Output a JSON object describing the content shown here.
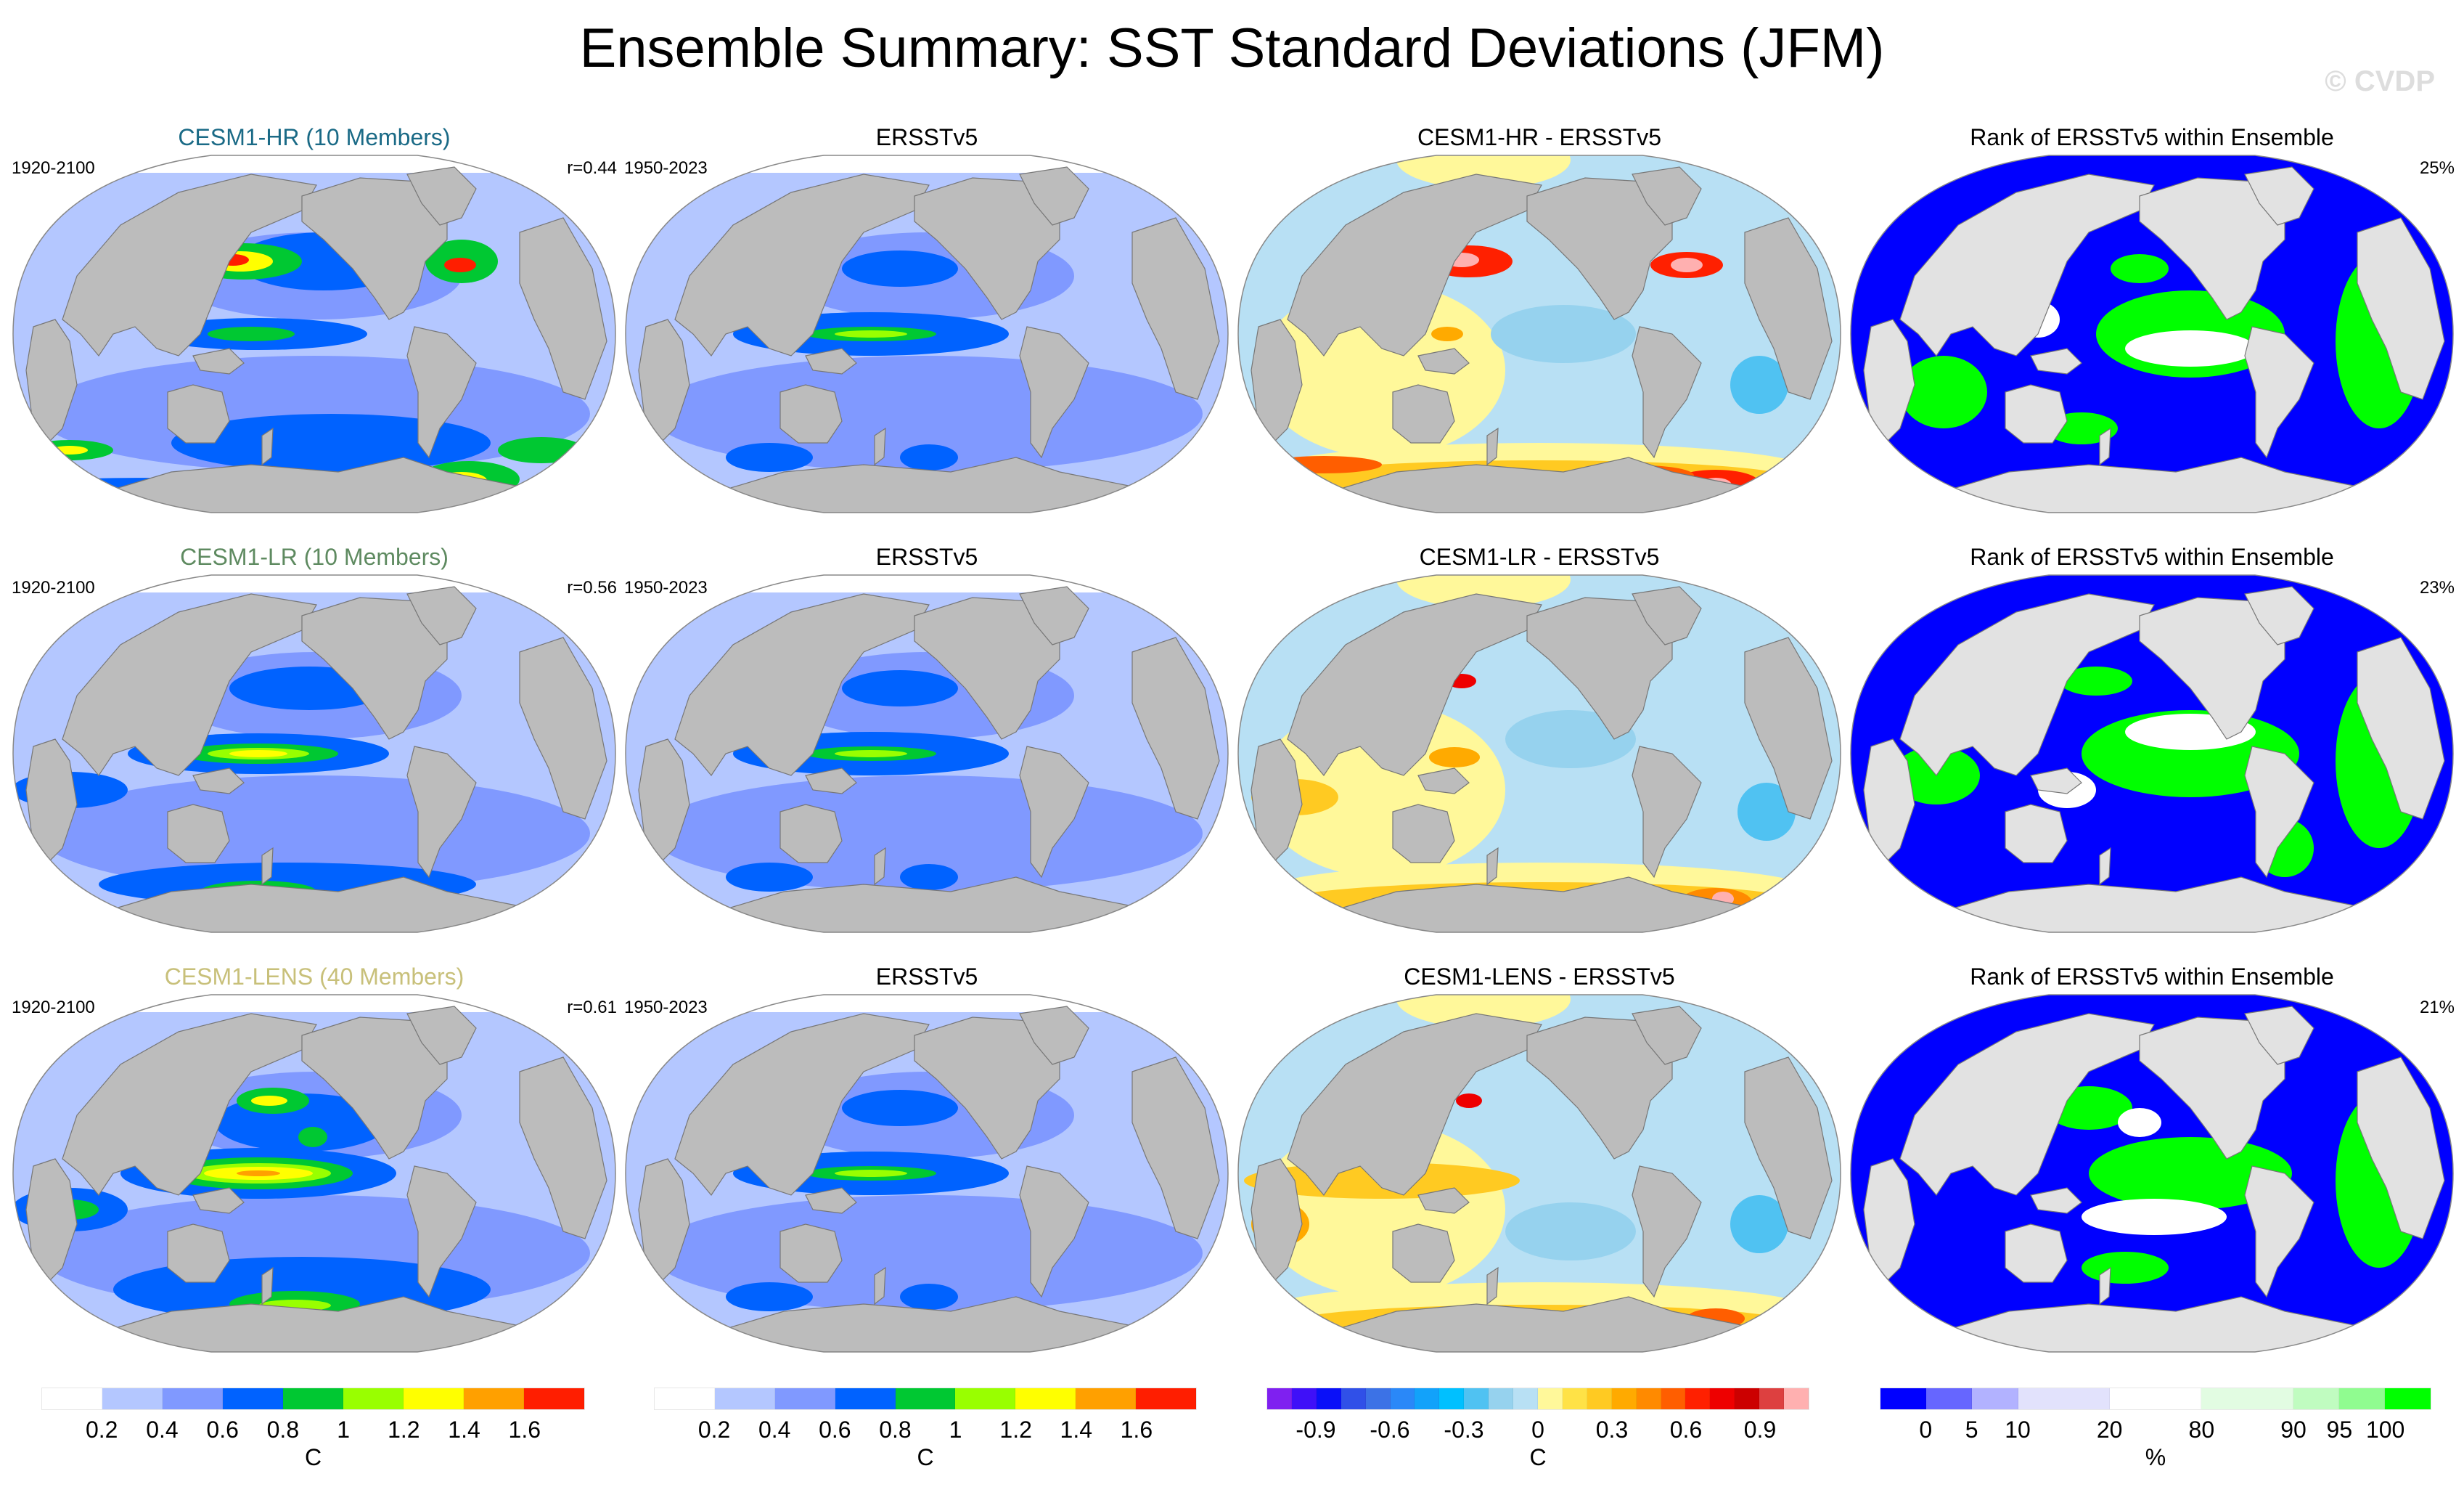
{
  "title": "Ensemble Summary: SST Standard Deviations (JFM)",
  "watermark": "© CVDP",
  "colors": {
    "land": "#bcbcbc",
    "land_rank": "#e2e2e2",
    "hr_title": "#1a6a86",
    "lr_title": "#5e8a60",
    "lens_title": "#c8c07a"
  },
  "rows": [
    {
      "model": "CESM1-HR (10 Members)",
      "model_period": "1920-2100",
      "pattern_corr": "r=0.44",
      "obs_title": "ERSSTv5",
      "obs_period": "1950-2023",
      "diff_title": "CESM1-HR - ERSSTv5",
      "rank_title": "Rank of ERSSTv5 within Ensemble",
      "rank_pct": "25%"
    },
    {
      "model": "CESM1-LR (10 Members)",
      "model_period": "1920-2100",
      "pattern_corr": "r=0.56",
      "obs_title": "ERSSTv5",
      "obs_period": "1950-2023",
      "diff_title": "CESM1-LR - ERSSTv5",
      "rank_title": "Rank of ERSSTv5 within Ensemble",
      "rank_pct": "23%"
    },
    {
      "model": "CESM1-LENS (40 Members)",
      "model_period": "1920-2100",
      "pattern_corr": "r=0.61",
      "obs_title": "ERSSTv5",
      "obs_period": "1950-2023",
      "diff_title": "CESM1-LENS - ERSSTv5",
      "rank_title": "Rank of ERSSTv5 within Ensemble",
      "rank_pct": "21%"
    }
  ],
  "colorbars": {
    "stddev": {
      "units": "C",
      "colors": [
        "#ffffff",
        "#b4c7ff",
        "#8099ff",
        "#0062ff",
        "#00c832",
        "#99ff00",
        "#ffff00",
        "#ffa000",
        "#ff1e00"
      ],
      "ticks": [
        "0.2",
        "0.4",
        "0.6",
        "0.8",
        "1",
        "1.2",
        "1.4",
        "1.6"
      ]
    },
    "diff": {
      "units": "C",
      "colors": [
        "#7f20f0",
        "#3f10f8",
        "#0a10f8",
        "#3050e8",
        "#3c72e6",
        "#2a88f8",
        "#12a2fa",
        "#00c0ff",
        "#50c2f2",
        "#96d2ee",
        "#b8e0f4",
        "#fff89a",
        "#ffe246",
        "#ffca22",
        "#ffaa00",
        "#ff8a00",
        "#ff5e00",
        "#ff2000",
        "#ee0000",
        "#cc0000",
        "#dd4040",
        "#ffb0b0"
      ],
      "ticks": [
        "-0.9",
        "-0.6",
        "-0.3",
        "0",
        "0.3",
        "0.6",
        "0.9"
      ]
    },
    "rank": {
      "units": "%",
      "colors": [
        "#0000ff",
        "#6666ff",
        "#b2b2ff",
        "#e2e2fc",
        "#ffffff",
        "#e2fce2",
        "#c0fcc0",
        "#90fc90",
        "#00ff00"
      ],
      "widths": [
        1,
        1,
        1,
        2,
        2,
        2,
        1,
        1,
        1
      ],
      "ticks": [
        "0",
        "5",
        "10",
        "20",
        "80",
        "90",
        "95",
        "100"
      ]
    }
  },
  "chart_data": {
    "type": "heatmap",
    "title": "Ensemble Summary: SST Standard Deviations (JFM)",
    "panels": [
      {
        "row": 1,
        "title": "CESM1-HR (10 Members)",
        "period": "1920-2100",
        "annotation": "r=0.44",
        "variable": "SST std dev",
        "units": "C"
      },
      {
        "row": 1,
        "title": "ERSSTv5",
        "period": "1950-2023",
        "variable": "SST std dev",
        "units": "C"
      },
      {
        "row": 1,
        "title": "CESM1-HR - ERSSTv5",
        "variable": "difference",
        "units": "C"
      },
      {
        "row": 1,
        "title": "Rank of ERSSTv5 within Ensemble",
        "annotation": "25%",
        "units": "%"
      },
      {
        "row": 2,
        "title": "CESM1-LR (10 Members)",
        "period": "1920-2100",
        "annotation": "r=0.56",
        "variable": "SST std dev",
        "units": "C"
      },
      {
        "row": 2,
        "title": "ERSSTv5",
        "period": "1950-2023",
        "variable": "SST std dev",
        "units": "C"
      },
      {
        "row": 2,
        "title": "CESM1-LR - ERSSTv5",
        "variable": "difference",
        "units": "C"
      },
      {
        "row": 2,
        "title": "Rank of ERSSTv5 within Ensemble",
        "annotation": "23%",
        "units": "%"
      },
      {
        "row": 3,
        "title": "CESM1-LENS (40 Members)",
        "period": "1920-2100",
        "annotation": "r=0.61",
        "variable": "SST std dev",
        "units": "C"
      },
      {
        "row": 3,
        "title": "ERSSTv5",
        "period": "1950-2023",
        "variable": "SST std dev",
        "units": "C"
      },
      {
        "row": 3,
        "title": "CESM1-LENS - ERSSTv5",
        "variable": "difference",
        "units": "C"
      },
      {
        "row": 3,
        "title": "Rank of ERSSTv5 within Ensemble",
        "annotation": "21%",
        "units": "%"
      }
    ],
    "colorbar_stddev_levels": [
      0.2,
      0.4,
      0.6,
      0.8,
      1,
      1.2,
      1.4,
      1.6
    ],
    "colorbar_diff_levels": [
      -0.9,
      -0.6,
      -0.3,
      0,
      0.3,
      0.6,
      0.9
    ],
    "colorbar_rank_levels": [
      0,
      5,
      10,
      20,
      80,
      90,
      95,
      100
    ]
  }
}
